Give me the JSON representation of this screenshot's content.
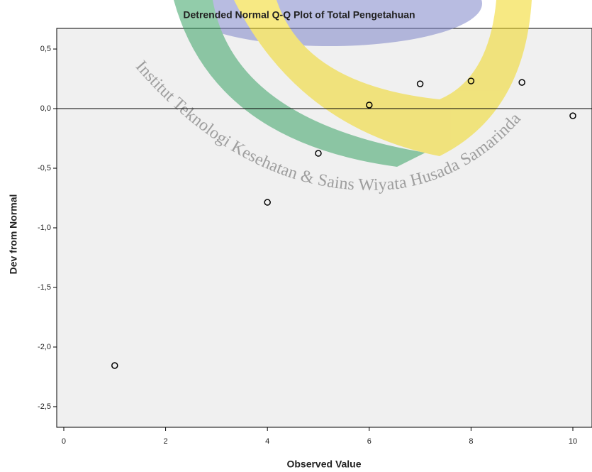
{
  "chart_data": {
    "type": "scatter",
    "title": "Detrended Normal Q-Q Plot of Total Pengetahuan",
    "x_label": "Observed Value",
    "y_label": "Dev from Normal",
    "x": [
      1,
      4,
      5,
      6,
      7,
      8,
      9,
      10
    ],
    "series": [
      {
        "color": "#000000",
        "values": [
          -2.155,
          -0.786,
          -0.375,
          0.03,
          0.208,
          0.232,
          0.22,
          -0.06
        ]
      }
    ],
    "xlim": [
      -0.139,
      10.376
    ],
    "ylim": [
      -2.673,
      0.673
    ],
    "xticks": [
      0,
      2,
      4,
      6,
      8,
      10
    ],
    "yticks": [
      {
        "value": 0.5,
        "label": "0,5"
      },
      {
        "value": 0.0,
        "label": "0,0"
      },
      {
        "value": -0.5,
        "label": "-0,5"
      },
      {
        "value": -1.0,
        "label": "-1,0"
      },
      {
        "value": -1.5,
        "label": "-1,5"
      },
      {
        "value": -2.0,
        "label": "-2,0"
      },
      {
        "value": -2.5,
        "label": "-2,5"
      }
    ],
    "reference_line": 0
  },
  "watermark": {
    "text": "Institut Teknologi Kesehatan & Sains   Wiyata Husada Samarinda"
  }
}
